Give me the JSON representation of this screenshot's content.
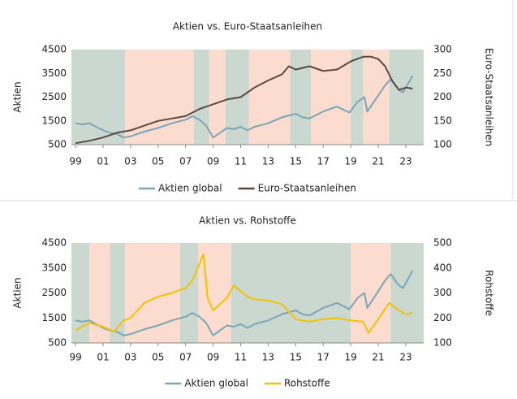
{
  "chart_data": [
    {
      "type": "line",
      "title": "Aktien vs. Euro-Staatsanleihen",
      "y_label": "Aktien",
      "y2_label": "Euro-Staatsanleihen",
      "xlim": [
        1998.7,
        2024.3
      ],
      "xticks": [
        {
          "value": 1999,
          "label": "99"
        },
        {
          "value": 2001,
          "label": "01"
        },
        {
          "value": 2003,
          "label": "03"
        },
        {
          "value": 2005,
          "label": "05"
        },
        {
          "value": 2007,
          "label": "07"
        },
        {
          "value": 2009,
          "label": "09"
        },
        {
          "value": 2011,
          "label": "11"
        },
        {
          "value": 2013,
          "label": "13"
        },
        {
          "value": 2015,
          "label": "15"
        },
        {
          "value": 2017,
          "label": "17"
        },
        {
          "value": 2019,
          "label": "19"
        },
        {
          "value": 2021,
          "label": "21"
        },
        {
          "value": 2023,
          "label": "23"
        }
      ],
      "ylim": [
        500,
        4500
      ],
      "yticks": [
        500,
        1500,
        2500,
        3500,
        4500
      ],
      "y2lim": [
        100,
        300
      ],
      "y2ticks": [
        100,
        150,
        200,
        250,
        300
      ],
      "regions": [
        {
          "start": 1998.7,
          "end": 2002.6,
          "color": "#cbd8cf"
        },
        {
          "start": 2002.6,
          "end": 2007.6,
          "color": "#fbdccf"
        },
        {
          "start": 2007.6,
          "end": 2008.7,
          "color": "#cbd8cf"
        },
        {
          "start": 2008.7,
          "end": 2009.9,
          "color": "#fbdccf"
        },
        {
          "start": 2009.9,
          "end": 2011.6,
          "color": "#cbd8cf"
        },
        {
          "start": 2011.6,
          "end": 2014.6,
          "color": "#fbdccf"
        },
        {
          "start": 2014.6,
          "end": 2016.1,
          "color": "#cbd8cf"
        },
        {
          "start": 2016.1,
          "end": 2019,
          "color": "#fbdccf"
        },
        {
          "start": 2019,
          "end": 2019.9,
          "color": "#cbd8cf"
        },
        {
          "start": 2019.9,
          "end": 2021.8,
          "color": "#fbdccf"
        },
        {
          "start": 2021.8,
          "end": 2024.3,
          "color": "#cbd8cf"
        }
      ],
      "series": [
        {
          "name": "Aktien global",
          "color": "#7ba5b8",
          "x": [
            1999,
            1999.5,
            2000,
            2000.5,
            2001,
            2001.5,
            2002,
            2002.5,
            2003,
            2003.5,
            2004,
            2005,
            2006,
            2007,
            2007.5,
            2008,
            2008.5,
            2009,
            2009.5,
            2010,
            2010.5,
            2011,
            2011.5,
            2012,
            2013,
            2014,
            2015,
            2015.5,
            2016,
            2017,
            2018,
            2018.9,
            2019.5,
            2020,
            2020.2,
            2020.8,
            2021.5,
            2021.9,
            2022.5,
            2022.8,
            2023.2,
            2023.5
          ],
          "values": [
            1400,
            1350,
            1400,
            1250,
            1100,
            1000,
            950,
            800,
            850,
            950,
            1050,
            1200,
            1400,
            1550,
            1700,
            1550,
            1300,
            800,
            1000,
            1200,
            1150,
            1250,
            1100,
            1250,
            1400,
            1650,
            1800,
            1650,
            1600,
            1900,
            2100,
            1850,
            2300,
            2500,
            1900,
            2400,
            3000,
            3250,
            2800,
            2700,
            3100,
            3400
          ]
        },
        {
          "name": "Euro-Staatsanleihen",
          "color": "#5b4841",
          "axis": "y2",
          "x": [
            1999,
            2000,
            2001,
            2002,
            2003,
            2004,
            2005,
            2006,
            2007,
            2008,
            2009,
            2010,
            2011,
            2012,
            2013,
            2014,
            2014.5,
            2015,
            2016,
            2017,
            2018,
            2019,
            2019.9,
            2020.5,
            2021,
            2021.5,
            2022,
            2022.5,
            2023,
            2023.5
          ],
          "values": [
            103,
            108,
            115,
            125,
            130,
            140,
            150,
            155,
            160,
            175,
            185,
            195,
            200,
            220,
            235,
            248,
            265,
            258,
            265,
            255,
            258,
            275,
            285,
            285,
            280,
            265,
            235,
            215,
            220,
            218
          ]
        }
      ]
    },
    {
      "type": "line",
      "title": "Aktien vs. Rohstoffe",
      "y_label": "Aktien",
      "y2_label": "Rohstoffe",
      "xlim": [
        1998.7,
        2024.3
      ],
      "xticks": [
        {
          "value": 1999,
          "label": "99"
        },
        {
          "value": 2001,
          "label": "01"
        },
        {
          "value": 2003,
          "label": "03"
        },
        {
          "value": 2005,
          "label": "05"
        },
        {
          "value": 2007,
          "label": "07"
        },
        {
          "value": 2009,
          "label": "09"
        },
        {
          "value": 2011,
          "label": "11"
        },
        {
          "value": 2013,
          "label": "13"
        },
        {
          "value": 2015,
          "label": "15"
        },
        {
          "value": 2017,
          "label": "17"
        },
        {
          "value": 2019,
          "label": "19"
        },
        {
          "value": 2021,
          "label": "21"
        },
        {
          "value": 2023,
          "label": "23"
        }
      ],
      "ylim": [
        500,
        4500
      ],
      "yticks": [
        500,
        1500,
        2500,
        3500,
        4500
      ],
      "y2lim": [
        100,
        500
      ],
      "y2ticks": [
        100,
        200,
        300,
        400,
        500
      ],
      "regions": [
        {
          "start": 1998.7,
          "end": 2000,
          "color": "#cbd8cf"
        },
        {
          "start": 2000,
          "end": 2001.5,
          "color": "#fbdccf"
        },
        {
          "start": 2001.5,
          "end": 2002.6,
          "color": "#cbd8cf"
        },
        {
          "start": 2002.6,
          "end": 2006.6,
          "color": "#fbdccf"
        },
        {
          "start": 2006.6,
          "end": 2007.9,
          "color": "#cbd8cf"
        },
        {
          "start": 2007.9,
          "end": 2010.3,
          "color": "#fbdccf"
        },
        {
          "start": 2010.3,
          "end": 2019,
          "color": "#cbd8cf"
        },
        {
          "start": 2019,
          "end": 2021.9,
          "color": "#fbdccf"
        },
        {
          "start": 2021.9,
          "end": 2024.3,
          "color": "#cbd8cf"
        }
      ],
      "series": [
        {
          "name": "Aktien global",
          "color": "#7ba5b8",
          "x": [
            1999,
            1999.5,
            2000,
            2000.5,
            2001,
            2001.5,
            2002,
            2002.5,
            2003,
            2003.5,
            2004,
            2005,
            2006,
            2007,
            2007.5,
            2008,
            2008.5,
            2009,
            2009.5,
            2010,
            2010.5,
            2011,
            2011.5,
            2012,
            2013,
            2014,
            2015,
            2015.5,
            2016,
            2017,
            2018,
            2018.9,
            2019.5,
            2020,
            2020.2,
            2020.8,
            2021.5,
            2021.9,
            2022.5,
            2022.8,
            2023.2,
            2023.5
          ],
          "values": [
            1400,
            1350,
            1400,
            1250,
            1100,
            1000,
            950,
            800,
            850,
            950,
            1050,
            1200,
            1400,
            1550,
            1700,
            1550,
            1300,
            800,
            1000,
            1200,
            1150,
            1250,
            1100,
            1250,
            1400,
            1650,
            1800,
            1650,
            1600,
            1900,
            2100,
            1850,
            2300,
            2500,
            1900,
            2400,
            3000,
            3250,
            2800,
            2700,
            3100,
            3400
          ]
        },
        {
          "name": "Rohstoffe",
          "color": "#f2c100",
          "axis": "y2",
          "x": [
            1999,
            2000,
            2001,
            2001.8,
            2002.5,
            2003,
            2004,
            2005,
            2006,
            2007,
            2007.5,
            2008.3,
            2008.6,
            2009,
            2010,
            2010.5,
            2011.5,
            2012,
            2013,
            2014,
            2015,
            2016,
            2017,
            2018,
            2019,
            2019.9,
            2020.3,
            2021,
            2021.8,
            2022.5,
            2023,
            2023.5
          ],
          "values": [
            150,
            180,
            165,
            145,
            190,
            200,
            260,
            285,
            300,
            320,
            350,
            455,
            280,
            230,
            280,
            330,
            285,
            275,
            270,
            255,
            195,
            185,
            195,
            200,
            190,
            185,
            140,
            195,
            260,
            230,
            215,
            220
          ]
        }
      ]
    }
  ]
}
